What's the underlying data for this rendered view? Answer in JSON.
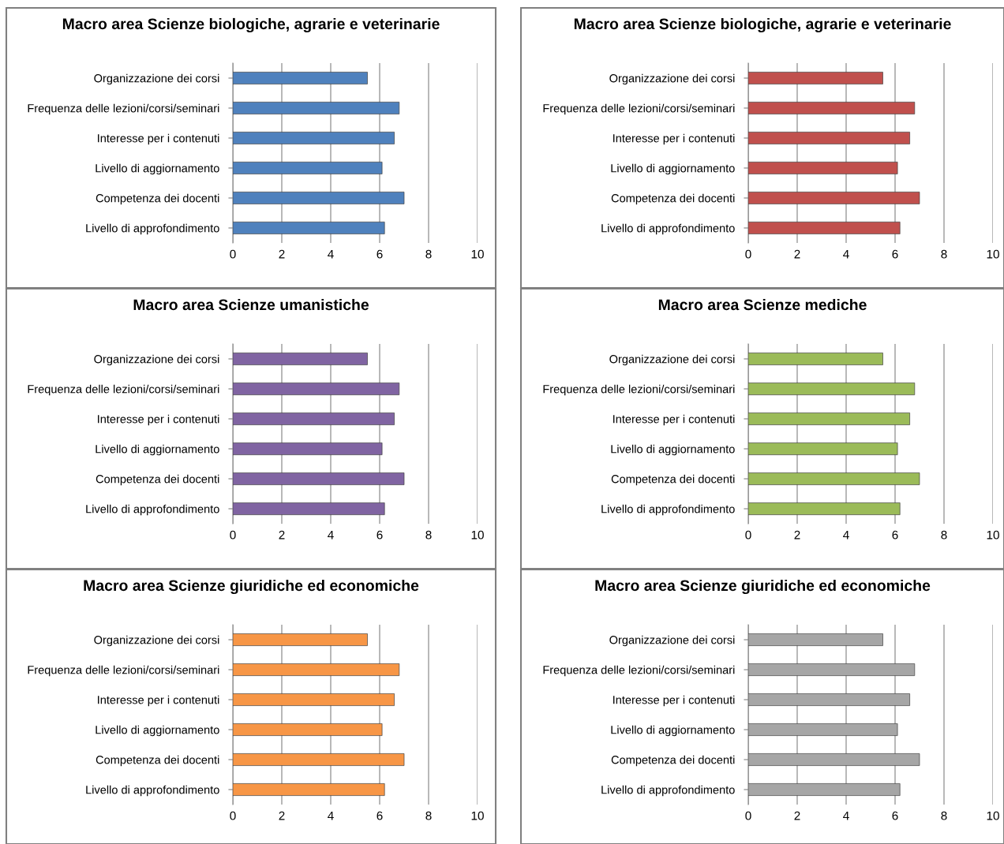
{
  "chart_data": [
    {
      "type": "bar",
      "orientation": "horizontal",
      "title": "Macro area Scienze biologiche, agrarie e veterinarie",
      "categories": [
        "Organizzazione dei corsi",
        "Frequenza delle lezioni/corsi/seminari",
        "Interesse per i contenuti",
        "Livello di aggiornamento",
        "Competenza dei docenti",
        "Livello di approfondimento"
      ],
      "values": [
        5.5,
        6.8,
        6.6,
        6.1,
        7.0,
        6.2
      ],
      "color": "#4f81bd",
      "xlim": [
        0,
        10
      ],
      "xticks": [
        0,
        2,
        4,
        6,
        8,
        10
      ],
      "grid": "x"
    },
    {
      "type": "bar",
      "orientation": "horizontal",
      "title": "Macro area Scienze biologiche, agrarie e veterinarie",
      "categories": [
        "Organizzazione dei corsi",
        "Frequenza delle lezioni/corsi/seminari",
        "Interesse per i contenuti",
        "Livello di aggiornamento",
        "Competenza dei docenti",
        "Livello di approfondimento"
      ],
      "values": [
        5.5,
        6.8,
        6.6,
        6.1,
        7.0,
        6.2
      ],
      "color": "#c0504d",
      "xlim": [
        0,
        10
      ],
      "xticks": [
        0,
        2,
        4,
        6,
        8,
        10
      ],
      "grid": "x"
    },
    {
      "type": "bar",
      "orientation": "horizontal",
      "title": "Macro area Scienze umanistiche",
      "categories": [
        "Organizzazione dei corsi",
        "Frequenza delle lezioni/corsi/seminari",
        "Interesse per i contenuti",
        "Livello di aggiornamento",
        "Competenza dei docenti",
        "Livello di approfondimento"
      ],
      "values": [
        5.5,
        6.8,
        6.6,
        6.1,
        7.0,
        6.2
      ],
      "color": "#8064a2",
      "xlim": [
        0,
        10
      ],
      "xticks": [
        0,
        2,
        4,
        6,
        8,
        10
      ],
      "grid": "x"
    },
    {
      "type": "bar",
      "orientation": "horizontal",
      "title": "Macro area Scienze mediche",
      "categories": [
        "Organizzazione dei corsi",
        "Frequenza delle lezioni/corsi/seminari",
        "Interesse per i contenuti",
        "Livello di aggiornamento",
        "Competenza dei docenti",
        "Livello di approfondimento"
      ],
      "values": [
        5.5,
        6.8,
        6.6,
        6.1,
        7.0,
        6.2
      ],
      "color": "#9bbb59",
      "xlim": [
        0,
        10
      ],
      "xticks": [
        0,
        2,
        4,
        6,
        8,
        10
      ],
      "grid": "x"
    },
    {
      "type": "bar",
      "orientation": "horizontal",
      "title": "Macro area Scienze giuridiche ed economiche",
      "categories": [
        "Organizzazione dei corsi",
        "Frequenza delle lezioni/corsi/seminari",
        "Interesse per i contenuti",
        "Livello di aggiornamento",
        "Competenza dei docenti",
        "Livello di approfondimento"
      ],
      "values": [
        5.5,
        6.8,
        6.6,
        6.1,
        7.0,
        6.2
      ],
      "color": "#f79646",
      "xlim": [
        0,
        10
      ],
      "xticks": [
        0,
        2,
        4,
        6,
        8,
        10
      ],
      "grid": "x"
    },
    {
      "type": "bar",
      "orientation": "horizontal",
      "title": "Macro area Scienze giuridiche ed economiche",
      "categories": [
        "Organizzazione dei corsi",
        "Frequenza delle lezioni/corsi/seminari",
        "Interesse per i contenuti",
        "Livello di aggiornamento",
        "Competenza dei docenti",
        "Livello di approfondimento"
      ],
      "values": [
        5.5,
        6.8,
        6.6,
        6.1,
        7.0,
        6.2
      ],
      "color": "#a6a6a6",
      "xlim": [
        0,
        10
      ],
      "xticks": [
        0,
        2,
        4,
        6,
        8,
        10
      ],
      "grid": "x"
    }
  ]
}
